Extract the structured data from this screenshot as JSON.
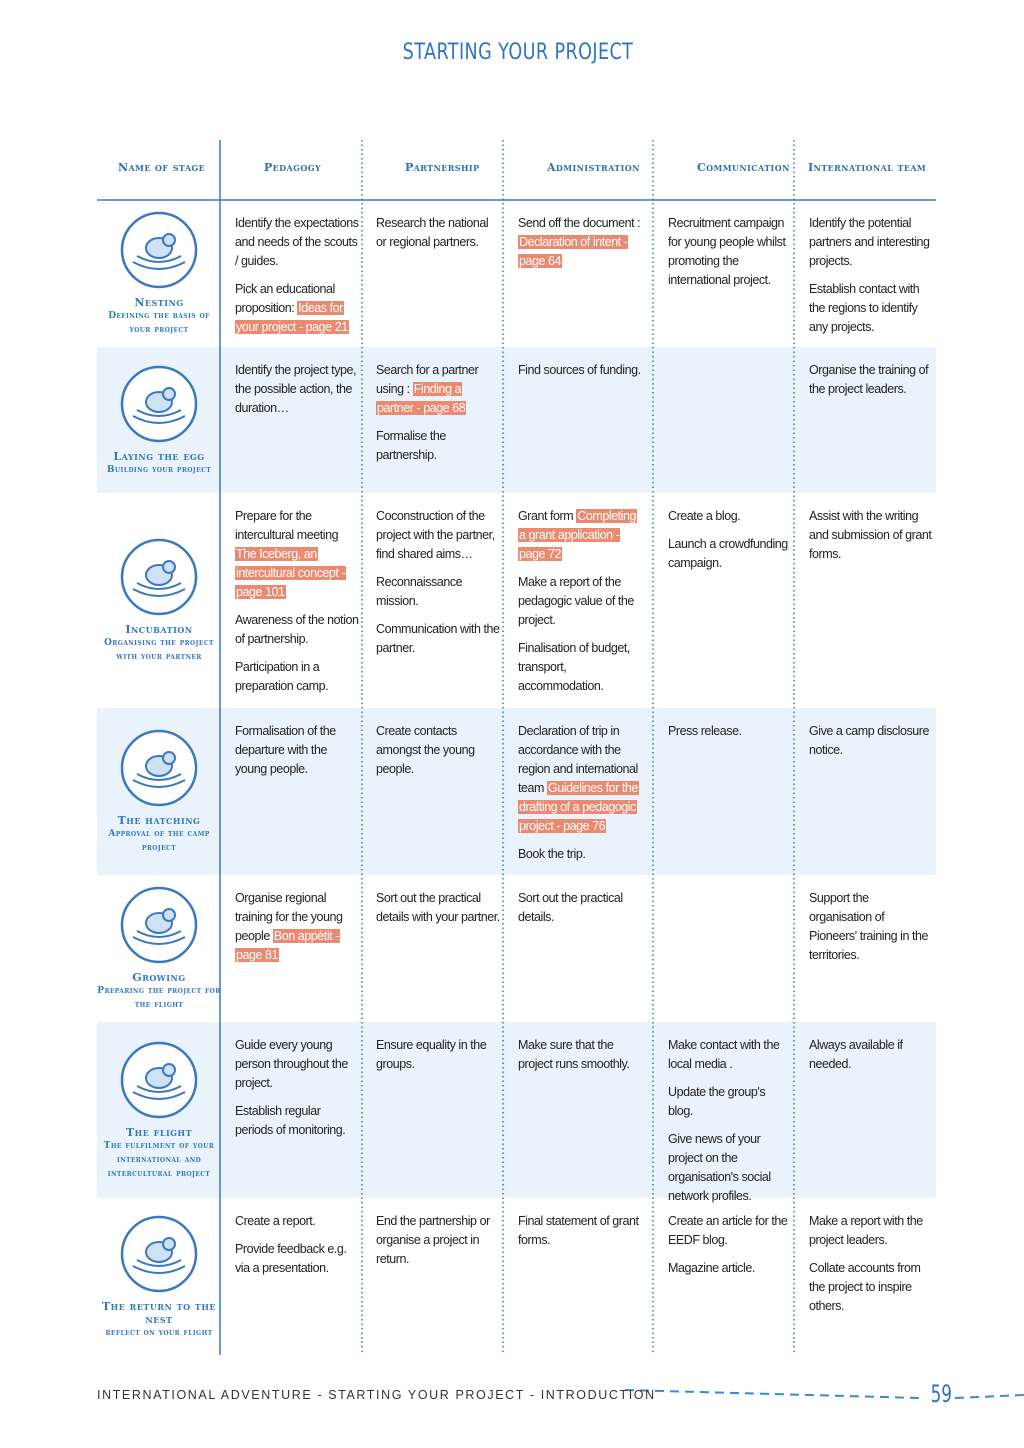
{
  "header": {
    "title": "STARTING YOUR PROJECT"
  },
  "table": {
    "columns": [
      "Name of stage",
      "Pedagogy",
      "Partnership",
      "Administration",
      "Communication",
      "International team"
    ],
    "rows": [
      {
        "name": "Nesting",
        "subtitle": "Defining the basis of your project",
        "cells": [
          [
            "Identify the expectations and needs of the scouts / guides.",
            {
              "text": "Pick an educational proposition:",
              "link": "Ideas for your project - page 21"
            }
          ],
          [
            "Research the national or regional partners."
          ],
          [
            {
              "text": "Send off the document :",
              "link": "Declaration of intent - page 64"
            }
          ],
          [
            "Recruitment campaign for young people whilst promoting the international project."
          ],
          [
            "Identify the potential partners and interesting projects.",
            "Establish contact with the regions to identify any projects."
          ]
        ]
      },
      {
        "name": "Laying the egg",
        "subtitle": "Building your project",
        "cells": [
          [
            "Identify the project type, the possible action, the duration…"
          ],
          [
            {
              "text": "Search for a partner using :",
              "link": "Finding a partner - page 68"
            },
            "Formalise the partnership."
          ],
          [
            "Find sources of funding."
          ],
          [],
          [
            "Organise the training of the project leaders."
          ]
        ]
      },
      {
        "name": "Incubation",
        "subtitle": "Organising the project with your partner",
        "cells": [
          [
            {
              "text": "Prepare for the intercultural meeting",
              "link": "The Iceberg, an intercultural concept - page 101"
            },
            "Awareness of the notion of partnership.",
            "Participation in a preparation camp."
          ],
          [
            "Coconstruction of the project with the partner, find shared aims…",
            "Reconnaissance mission.",
            "Communication with the partner."
          ],
          [
            {
              "text": "Grant form",
              "link": "Completing a grant application - page 72"
            },
            "Make a report of the pedagogic value of the project.",
            "Finalisation of budget, transport, accommodation."
          ],
          [
            "Create a blog.",
            "Launch a crowdfunding campaign."
          ],
          [
            "Assist with the writing and submission of grant forms."
          ]
        ]
      },
      {
        "name": "The hatching",
        "subtitle": "Approval of the camp project",
        "cells": [
          [
            "Formalisation of the departure with the young people."
          ],
          [
            "Create contacts amongst the young people."
          ],
          [
            {
              "text": "Declaration of trip in accordance with the region and international team",
              "link": "Guidelines for the drafting of a pedagogic project - page 76"
            },
            "Book the trip."
          ],
          [
            "Press release."
          ],
          [
            "Give a camp disclosure notice."
          ]
        ]
      },
      {
        "name": "Growing",
        "subtitle": "Preparing the project for the flight",
        "cells": [
          [
            {
              "text": "Organise regional training for the young people",
              "link": "Bon appétit - page 81"
            }
          ],
          [
            "Sort out the practical details with your partner."
          ],
          [
            "Sort out the practical details."
          ],
          [],
          [
            "Support the organisation of Pioneers' training in the territories."
          ]
        ]
      },
      {
        "name": "The flight",
        "subtitle": "The fulfilment of your international and intercultural project",
        "cells": [
          [
            "Guide every young person throughout the project.",
            "Establish regular periods of monitoring."
          ],
          [
            "Ensure equality in the groups."
          ],
          [
            "Make sure that the project runs smoothly."
          ],
          [
            "Make contact with the local media .",
            "Update the group's blog.",
            "Give news of your project on the organisation's social network profiles."
          ],
          [
            "Always available if needed."
          ]
        ]
      },
      {
        "name": "The return to the nest",
        "subtitle": "reflect on your flight",
        "cells": [
          [
            "Create a report.",
            "Provide feedback e.g. via a presentation."
          ],
          [
            "End the partnership or organise a project in return."
          ],
          [
            "Final statement of grant forms."
          ],
          [
            "Create an article for the EEDF blog.",
            "Magazine article."
          ],
          [
            "Make a report with the project leaders.",
            "Collate accounts from the project to inspire others."
          ]
        ]
      }
    ]
  },
  "footer": {
    "text": "INTERNATIONAL ADVENTURE - STARTING YOUR PROJECT - INTRODUCTION",
    "page": "59"
  }
}
